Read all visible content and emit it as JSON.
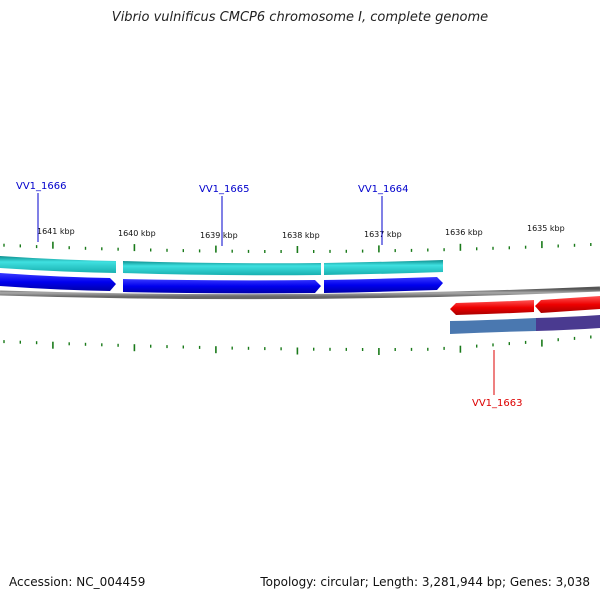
{
  "title": "Vibrio vulnificus CMCP6 chromosome I, complete genome",
  "footer": {
    "accession": "Accession: NC_004459",
    "summary": "Topology: circular; Length: 3,281,944 bp; Genes: 3,038"
  },
  "colors": {
    "forward_cds": "#0000ee",
    "forward_gene": "#22cccc",
    "reverse_cds": "#ee0000",
    "reverse_gene_a": "#4a78b0",
    "reverse_gene_b": "#4a3a90",
    "backbone": "#777777",
    "tick": "#1a7a1a",
    "label_forward": "#0000cc",
    "label_reverse": "#dd0000"
  },
  "tick_labels": [
    "1641 kbp",
    "1640 kbp",
    "1639 kbp",
    "1638 kbp",
    "1637 kbp",
    "1636 kbp",
    "1635 kbp"
  ],
  "genes": [
    {
      "label": "VV1_1666",
      "strand": "forward"
    },
    {
      "label": "VV1_1665",
      "strand": "forward"
    },
    {
      "label": "VV1_1664",
      "strand": "forward"
    },
    {
      "label": "VV1_1663",
      "strand": "reverse"
    }
  ]
}
